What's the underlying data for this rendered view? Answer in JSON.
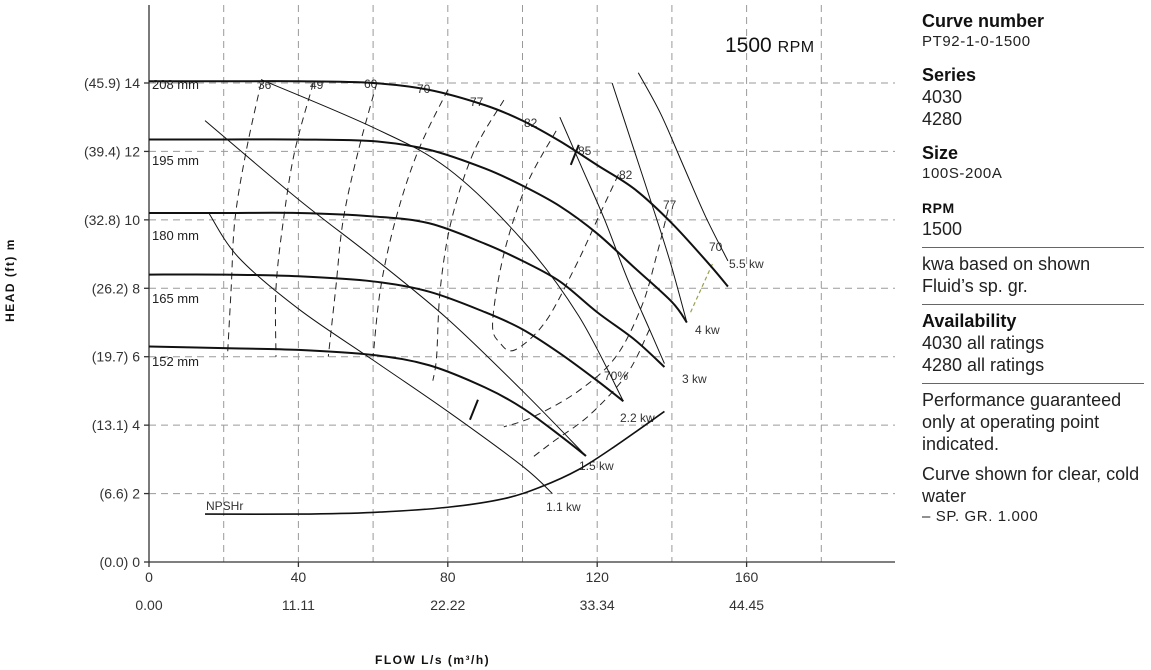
{
  "chart_data": {
    "type": "line",
    "rpm_value": "1500",
    "rpm_unit": "RPM",
    "xlabel": "FLOW L/s (m³/h)",
    "ylabel": "HEAD (ft) m",
    "xlim": [
      0,
      200
    ],
    "ylim": [
      0,
      16
    ],
    "x_ticks": [
      0,
      40,
      80,
      120,
      160
    ],
    "x_tick_labels": [
      "0",
      "40",
      "80",
      "120",
      "160"
    ],
    "x_secondary_tick_labels": [
      "0.00",
      "11.11",
      "22.22",
      "33.34",
      "44.45"
    ],
    "y_ticks": [
      0,
      2,
      4,
      6,
      8,
      10,
      12,
      14
    ],
    "y_tick_labels": [
      "(0.0) 0",
      "(6.6) 2",
      "(13.1) 4",
      "(19.7) 6",
      "(26.2) 8",
      "(32.8) 10",
      "(39.4) 12",
      "(45.9) 14"
    ],
    "grid": true,
    "grid_x": [
      20,
      40,
      60,
      80,
      100,
      120,
      140,
      160,
      180
    ],
    "grid_y": [
      2,
      4,
      6,
      8,
      10,
      12,
      14
    ],
    "head_curves": [
      {
        "name": "208 mm",
        "points": [
          [
            0,
            14.05
          ],
          [
            20,
            14.05
          ],
          [
            40,
            14.05
          ],
          [
            60,
            14.0
          ],
          [
            75,
            13.8
          ],
          [
            90,
            13.35
          ],
          [
            100,
            12.9
          ],
          [
            110,
            12.3
          ],
          [
            120,
            11.6
          ],
          [
            130,
            10.9
          ],
          [
            140,
            9.9
          ],
          [
            150,
            8.7
          ],
          [
            155,
            8.05
          ]
        ]
      },
      {
        "name": "195 mm",
        "points": [
          [
            0,
            12.35
          ],
          [
            20,
            12.35
          ],
          [
            40,
            12.35
          ],
          [
            60,
            12.3
          ],
          [
            75,
            12.05
          ],
          [
            90,
            11.5
          ],
          [
            100,
            11.0
          ],
          [
            110,
            10.4
          ],
          [
            120,
            9.6
          ],
          [
            130,
            8.6
          ],
          [
            140,
            7.6
          ],
          [
            144,
            7.0
          ]
        ]
      },
      {
        "name": "180 mm",
        "points": [
          [
            0,
            10.2
          ],
          [
            20,
            10.2
          ],
          [
            40,
            10.2
          ],
          [
            60,
            10.1
          ],
          [
            75,
            9.9
          ],
          [
            90,
            9.3
          ],
          [
            100,
            8.8
          ],
          [
            110,
            8.2
          ],
          [
            120,
            7.3
          ],
          [
            130,
            6.5
          ],
          [
            138,
            5.7
          ]
        ]
      },
      {
        "name": "165 mm",
        "points": [
          [
            0,
            8.4
          ],
          [
            20,
            8.4
          ],
          [
            40,
            8.35
          ],
          [
            60,
            8.2
          ],
          [
            75,
            7.9
          ],
          [
            90,
            7.3
          ],
          [
            100,
            6.8
          ],
          [
            110,
            6.1
          ],
          [
            120,
            5.3
          ],
          [
            127,
            4.7
          ]
        ]
      },
      {
        "name": "152 mm",
        "points": [
          [
            0,
            6.3
          ],
          [
            20,
            6.25
          ],
          [
            40,
            6.2
          ],
          [
            60,
            6.05
          ],
          [
            75,
            5.75
          ],
          [
            90,
            5.1
          ],
          [
            100,
            4.5
          ],
          [
            110,
            3.7
          ],
          [
            117,
            3.1
          ]
        ]
      }
    ],
    "power_curves": [
      {
        "name": "5.5 kw",
        "points": [
          [
            131,
            14.3
          ],
          [
            137,
            13.1
          ],
          [
            143,
            11.6
          ],
          [
            149,
            10.1
          ],
          [
            155,
            8.8
          ]
        ]
      },
      {
        "name": "4 kw",
        "points": [
          [
            124,
            14.0
          ],
          [
            130,
            12.0
          ],
          [
            136,
            10.0
          ],
          [
            140,
            8.6
          ],
          [
            144,
            7.0
          ]
        ]
      },
      {
        "name": "3 kw",
        "points": [
          [
            110,
            13.0
          ],
          [
            116,
            11.5
          ],
          [
            122,
            10.0
          ],
          [
            128,
            8.3
          ],
          [
            134,
            6.8
          ],
          [
            138,
            5.8
          ]
        ]
      },
      {
        "name": "2.2 kw",
        "points": [
          [
            30,
            14.1
          ],
          [
            60,
            12.7
          ],
          [
            80,
            11.5
          ],
          [
            100,
            9.4
          ],
          [
            115,
            7.2
          ],
          [
            127,
            4.7
          ]
        ]
      },
      {
        "name": "1.5 kw",
        "points": [
          [
            15,
            12.9
          ],
          [
            40,
            10.6
          ],
          [
            60,
            8.9
          ],
          [
            80,
            7.1
          ],
          [
            100,
            5.0
          ],
          [
            117,
            3.1
          ]
        ]
      },
      {
        "name": "1.1 kw",
        "points": [
          [
            16,
            10.2
          ],
          [
            24,
            8.9
          ],
          [
            40,
            7.4
          ],
          [
            60,
            5.9
          ],
          [
            80,
            4.4
          ],
          [
            100,
            2.8
          ],
          [
            108,
            2.0
          ]
        ]
      }
    ],
    "efficiency_curves": [
      {
        "name": "36",
        "points": [
          [
            30,
            14.0
          ],
          [
            26,
            12.0
          ],
          [
            23,
            10.0
          ],
          [
            22,
            8.0
          ],
          [
            21,
            6.0
          ]
        ]
      },
      {
        "name": "49",
        "points": [
          [
            44,
            14.0
          ],
          [
            39,
            12.0
          ],
          [
            36,
            10.0
          ],
          [
            34,
            8.0
          ],
          [
            34,
            6.0
          ]
        ]
      },
      {
        "name": "60",
        "points": [
          [
            61,
            14.0
          ],
          [
            56,
            12.0
          ],
          [
            52,
            10.0
          ],
          [
            50,
            8.0
          ],
          [
            48,
            6.0
          ]
        ]
      },
      {
        "name": "70",
        "points": [
          [
            80,
            13.8
          ],
          [
            72,
            12.0
          ],
          [
            66,
            10.0
          ],
          [
            62,
            8.0
          ],
          [
            60,
            6.0
          ]
        ]
      },
      {
        "name": "77",
        "points": [
          [
            95,
            13.5
          ],
          [
            87,
            12.0
          ],
          [
            81,
            10.0
          ],
          [
            78,
            8.0
          ],
          [
            77,
            6.0
          ],
          [
            76,
            5.3
          ]
        ]
      },
      {
        "name": "82",
        "points": [
          [
            109,
            12.6
          ],
          [
            101,
            11.0
          ],
          [
            95,
            9.0
          ],
          [
            92,
            7.0
          ],
          [
            94,
            6.4
          ],
          [
            98,
            6.2
          ],
          [
            106,
            7.0
          ],
          [
            114,
            8.6
          ],
          [
            120,
            10.0
          ],
          [
            126,
            11.4
          ]
        ]
      },
      {
        "name": "77",
        "points": [
          [
            139,
            10.3
          ],
          [
            136,
            9.0
          ],
          [
            132,
            7.5
          ],
          [
            125,
            6.0
          ],
          [
            115,
            5.0
          ],
          [
            103,
            4.25
          ],
          [
            95,
            3.95
          ]
        ]
      },
      {
        "name": "70%",
        "points": [
          [
            134,
            6.8
          ],
          [
            128,
            5.5
          ],
          [
            118,
            4.3
          ],
          [
            108,
            3.5
          ],
          [
            102,
            3.0
          ]
        ]
      }
    ],
    "limit_curve": [
      [
        145,
        7.3
      ],
      [
        151,
        8.75
      ]
    ],
    "npsh": {
      "name": "NPSHr",
      "points": [
        [
          15,
          1.4
        ],
        [
          40,
          1.4
        ],
        [
          60,
          1.45
        ],
        [
          80,
          1.6
        ],
        [
          95,
          1.85
        ],
        [
          105,
          2.2
        ],
        [
          115,
          2.7
        ],
        [
          125,
          3.4
        ],
        [
          138,
          4.4
        ]
      ]
    },
    "bep_markers": [
      {
        "x": 114,
        "y": 11.9
      },
      {
        "x": 87,
        "y": 4.45
      }
    ]
  },
  "side_panel": {
    "curve_number_label": "Curve number",
    "curve_number_value": "PT92-1-0-1500",
    "series_label": "Series",
    "series_values": [
      "4030",
      "4280"
    ],
    "size_label": "Size",
    "size_value": "100S-200A",
    "rpm_label": "RPM",
    "rpm_value": "1500",
    "kwa_note": "kwa based on shown Fluid’s sp. gr.",
    "availability_label": "Availability",
    "availability_values": [
      "4030 all ratings",
      "4280 all ratings"
    ],
    "performance_note": "Performance guaranteed only at operating point indicated.",
    "water_note": "Curve shown for clear, cold water",
    "sg_note": "– SP. GR. 1.000"
  }
}
